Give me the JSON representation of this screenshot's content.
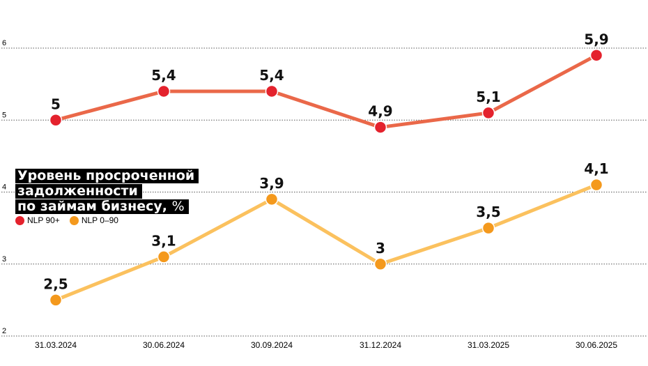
{
  "chart_data": {
    "type": "line",
    "title_lines": [
      "Уровень просроченной",
      "задолженности",
      "по займам бизнесу,"
    ],
    "title_unit": "%",
    "categories": [
      "31.03.2024",
      "30.06.2024",
      "30.09.2024",
      "31.12.2024",
      "31.03.2025",
      "30.06.2025"
    ],
    "y_ticks": [
      "2",
      "3",
      "4",
      "5",
      "6"
    ],
    "ylim": [
      2,
      6
    ],
    "grid": true,
    "legend_position": "left",
    "series": [
      {
        "name": "NLP 90+",
        "values": [
          5,
          5.4,
          5.4,
          4.9,
          5.1,
          5.9
        ],
        "labels": [
          "5",
          "5,4",
          "5,4",
          "4,9",
          "5,1",
          "5,9"
        ],
        "line_color": "#ea6849",
        "marker_color": "#e4222d"
      },
      {
        "name": "NLP 0–90",
        "values": [
          2.5,
          3.1,
          3.9,
          3,
          3.5,
          4.1
        ],
        "labels": [
          "2,5",
          "3,1",
          "3,9",
          "3",
          "3,5",
          "4,1"
        ],
        "line_color": "#fbc15e",
        "marker_color": "#f4991d"
      }
    ]
  }
}
